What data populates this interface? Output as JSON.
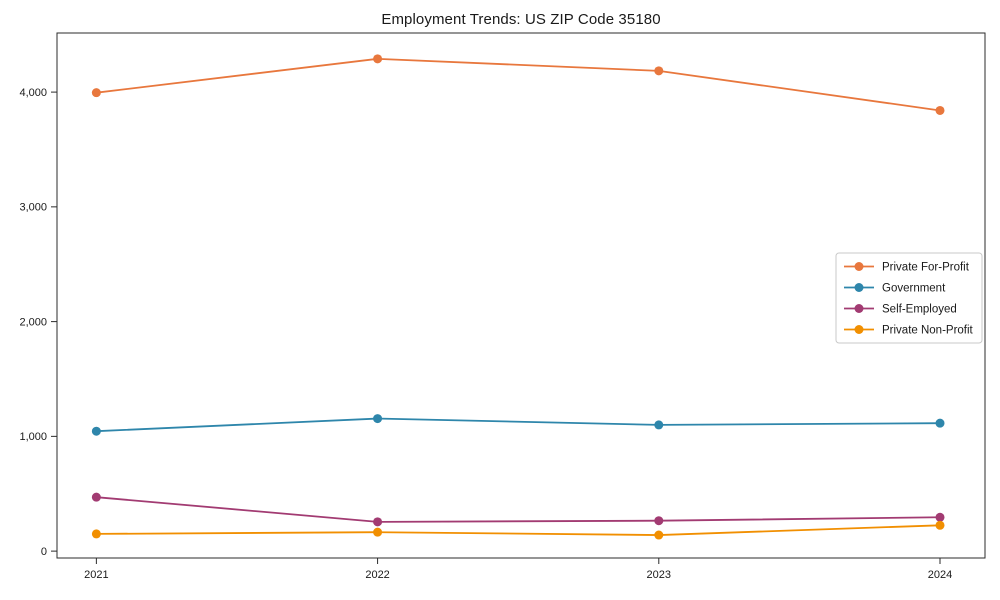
{
  "page_title": "Employment Trends: US ZIP Code 35180",
  "chart_data": {
    "type": "line",
    "title": "Employment Trends: US ZIP Code 35180",
    "xlabel": "",
    "ylabel": "",
    "x": [
      "2021",
      "2022",
      "2023",
      "2024"
    ],
    "series": [
      {
        "name": "Private For-Profit",
        "color": "#E8773D",
        "values": [
          3995,
          4290,
          4185,
          3840
        ]
      },
      {
        "name": "Government",
        "color": "#2E86AB",
        "values": [
          1045,
          1155,
          1100,
          1115
        ]
      },
      {
        "name": "Self-Employed",
        "color": "#A23B72",
        "values": [
          470,
          255,
          265,
          295
        ]
      },
      {
        "name": "Private Non-Profit",
        "color": "#F18F01",
        "values": [
          150,
          165,
          140,
          225
        ]
      }
    ],
    "yticks": [
      {
        "value": 0,
        "label": "0"
      },
      {
        "value": 1000,
        "label": "1,000"
      },
      {
        "value": 2000,
        "label": "2,000"
      },
      {
        "value": 3000,
        "label": "3,000"
      },
      {
        "value": 4000,
        "label": "4,000"
      }
    ],
    "ylim": [
      -60,
      4515
    ],
    "xlim_index": [
      -0.14,
      3.16
    ],
    "grid": false,
    "legend_position": "right",
    "frame_color": "#2b2b2b",
    "marker_radius": 4.5,
    "line_width": 1.8
  }
}
